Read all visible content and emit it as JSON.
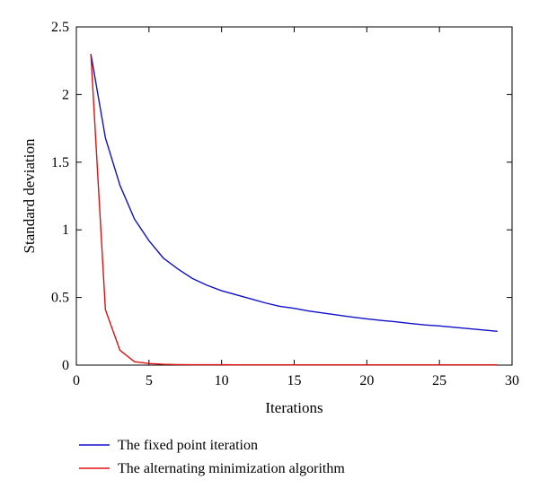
{
  "chart_data": {
    "type": "line",
    "title": "",
    "xlabel": "Iterations",
    "ylabel": "Standard deviation",
    "xlim": [
      0,
      30
    ],
    "ylim": [
      0,
      2.5
    ],
    "xticks": [
      0,
      5,
      10,
      15,
      20,
      25,
      30
    ],
    "xtick_labels": [
      "0",
      "5",
      "10",
      "15",
      "20",
      "25",
      "30"
    ],
    "yticks": [
      0,
      0.5,
      1,
      1.5,
      2,
      2.5
    ],
    "ytick_labels": [
      "0",
      "0.5",
      "1",
      "1.5",
      "2",
      "2.5"
    ],
    "grid": false,
    "legend_position": "below-left",
    "x": [
      1,
      2,
      3,
      4,
      5,
      6,
      7,
      8,
      9,
      10,
      11,
      12,
      13,
      14,
      15,
      16,
      17,
      18,
      19,
      20,
      21,
      22,
      23,
      24,
      25,
      26,
      27,
      28,
      29
    ],
    "series": [
      {
        "name": "The fixed point iteration",
        "color": "#1010c8",
        "values": [
          2.3,
          1.68,
          1.33,
          1.08,
          0.92,
          0.79,
          0.71,
          0.64,
          0.59,
          0.55,
          0.52,
          0.49,
          0.46,
          0.435,
          0.42,
          0.4,
          0.385,
          0.37,
          0.355,
          0.342,
          0.33,
          0.32,
          0.308,
          0.297,
          0.29,
          0.28,
          0.27,
          0.26,
          0.25
        ]
      },
      {
        "name": "The alternating minimization algorithm",
        "color": "#e01010",
        "values": [
          2.3,
          0.41,
          0.11,
          0.025,
          0.012,
          0.006,
          0.004,
          0.003,
          0.003,
          0.003,
          0.002,
          0.002,
          0.002,
          0.002,
          0.002,
          0.002,
          0.002,
          0.002,
          0.002,
          0.002,
          0.002,
          0.002,
          0.002,
          0.002,
          0.002,
          0.002,
          0.002,
          0.002,
          0.002
        ]
      }
    ]
  }
}
